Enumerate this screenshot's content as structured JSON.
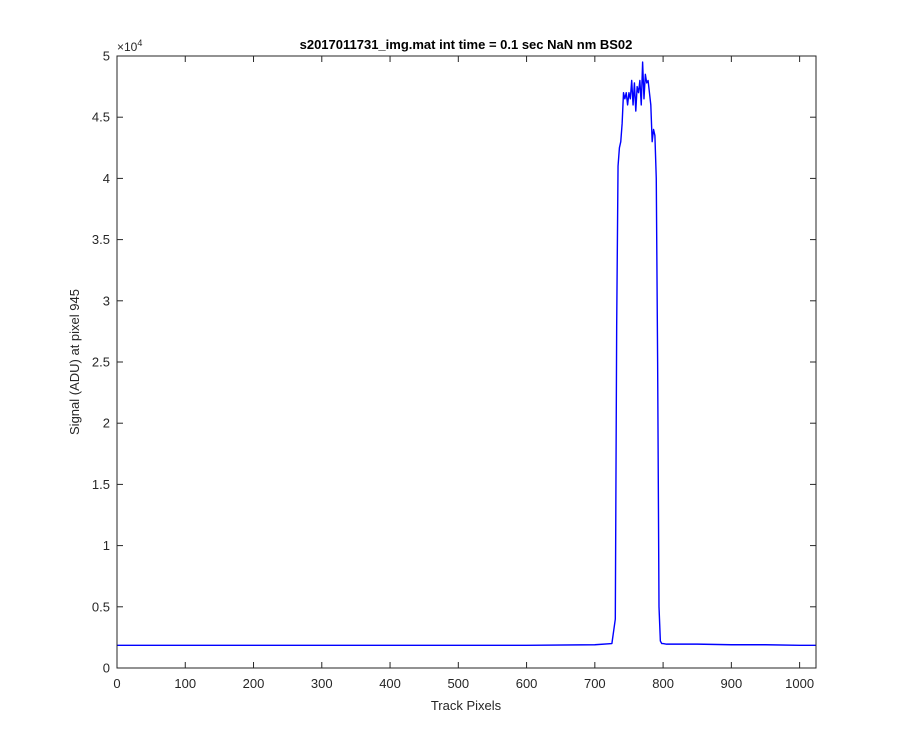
{
  "figure": {
    "background": "#ffffff",
    "axes_color": "#262626"
  },
  "chart_data": {
    "type": "line",
    "title": "s2017011731_img.mat int time = 0.1 sec  NaN nm BS02",
    "xlabel": "Track Pixels",
    "ylabel": "Signal (ADU) at pixel 945",
    "xlim": [
      0,
      1024
    ],
    "ylim": [
      0,
      50000
    ],
    "xticks": [
      0,
      100,
      200,
      300,
      400,
      500,
      600,
      700,
      800,
      900,
      1000
    ],
    "xtick_labels": [
      "0",
      "100",
      "200",
      "300",
      "400",
      "500",
      "600",
      "700",
      "800",
      "900",
      "1000"
    ],
    "yticks": [
      0,
      5000,
      10000,
      15000,
      20000,
      25000,
      30000,
      35000,
      40000,
      45000,
      50000
    ],
    "ytick_labels": [
      "0",
      "0.5",
      "1",
      "1.5",
      "2",
      "2.5",
      "3",
      "3.5",
      "4",
      "4.5",
      "5"
    ],
    "y_exponent_base": "×10",
    "y_exponent_power": "4",
    "grid": false,
    "legend": "none",
    "series": [
      {
        "color": "#0000ff",
        "x": [
          0,
          100,
          200,
          300,
          400,
          500,
          600,
          700,
          725,
          730,
          732,
          734,
          736,
          738,
          740,
          742,
          744,
          746,
          748,
          750,
          752,
          754,
          756,
          758,
          760,
          762,
          764,
          766,
          768,
          770,
          772,
          774,
          776,
          778,
          780,
          782,
          784,
          786,
          788,
          790,
          792,
          794,
          796,
          798,
          800,
          805,
          850,
          900,
          950,
          1000,
          1024
        ],
        "y": [
          1850,
          1850,
          1850,
          1850,
          1850,
          1850,
          1850,
          1900,
          2000,
          4000,
          28000,
          41000,
          42500,
          43000,
          44500,
          47000,
          46500,
          47000,
          46000,
          47000,
          46500,
          48000,
          46000,
          47800,
          45500,
          47500,
          47000,
          48000,
          46000,
          49500,
          46500,
          48500,
          47800,
          48000,
          47000,
          46000,
          43000,
          44000,
          43500,
          40000,
          25000,
          5000,
          2200,
          2000,
          2000,
          1950,
          1950,
          1900,
          1900,
          1850,
          1850
        ]
      }
    ]
  }
}
